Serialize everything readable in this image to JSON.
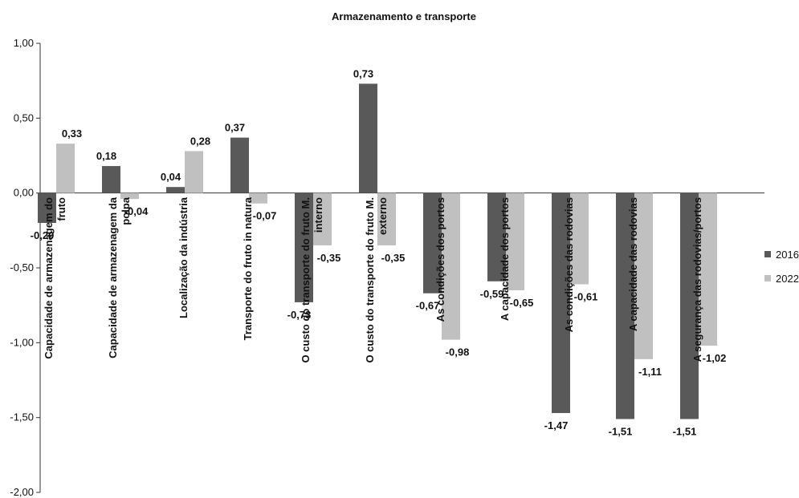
{
  "chart_data": {
    "type": "bar",
    "title": "Armazenamento e transporte",
    "categories": [
      [
        "Capacidade de armazenagem do",
        "fruto"
      ],
      [
        "Capacidade de armazenagem da",
        "polpa"
      ],
      [
        "Localização da indústria"
      ],
      [
        "Transporte do fruto in natura"
      ],
      [
        "O custo do transporte do fruto M.",
        "interno"
      ],
      [
        "O custo do transporte do fruto M.",
        "externo"
      ],
      [
        "As condições dos portos"
      ],
      [
        "A capacidade dos portos"
      ],
      [
        "As condições das rodovias"
      ],
      [
        "A capacidade das rodovias"
      ],
      [
        "A segurança das rodovias/portos"
      ]
    ],
    "series": [
      {
        "name": "2016",
        "color": "#595959",
        "values": [
          -0.2,
          0.18,
          0.04,
          0.37,
          -0.73,
          0.73,
          -0.67,
          -0.59,
          -1.47,
          -1.51,
          -1.51
        ],
        "labels": [
          "-0,20",
          "0,18",
          "0,04",
          "0,37",
          "-0,73",
          "0,73",
          "-0,67",
          "-0,59",
          "-1,47",
          "-1,51",
          "-1,51"
        ]
      },
      {
        "name": "2022",
        "color": "#c0c0c0",
        "values": [
          0.33,
          -0.04,
          0.28,
          -0.07,
          -0.35,
          -0.35,
          -0.98,
          -0.65,
          -0.61,
          -1.11,
          -1.02
        ],
        "labels": [
          "0,33",
          "-0,04",
          "0,28",
          "-0,07",
          "-0,35",
          "-0,35",
          "-0,98",
          "-0,65",
          "-0,61",
          "-1,11",
          "-1,02"
        ]
      }
    ],
    "ylim": [
      -2.0,
      1.0
    ],
    "yticks": [
      1.0,
      0.5,
      0.0,
      -0.5,
      -1.0,
      -1.5,
      -2.0
    ],
    "ytick_labels": [
      "1,00",
      "0,50",
      "0,00",
      "-0,50",
      "-1,00",
      "-1,50",
      "-2,00"
    ],
    "xlabel": "",
    "ylabel": "",
    "legend_position": "right",
    "grid": false
  }
}
